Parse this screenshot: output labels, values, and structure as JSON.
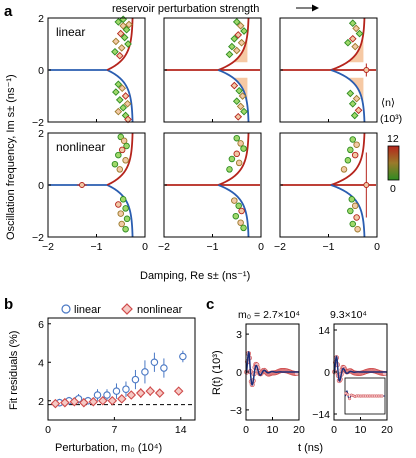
{
  "figure": {
    "panels": [
      "a",
      "b",
      "c"
    ],
    "header": "reservoir perturbation strength",
    "colorbar": {
      "label": "⟨n⟩",
      "unit": "(10³)",
      "max_label": "12",
      "min_label": "0",
      "colors": [
        "#2e8b22",
        "#9a7a2a",
        "#b5241c"
      ]
    },
    "palette": {
      "upper_curve": "#b5241c",
      "lower_curve": "#2a5db0",
      "shade": "#f6c9a4",
      "linear_marker": "#4a78c4",
      "nonlinear_marker": "#cf4b4b",
      "fit_line": "#1c2f7a"
    }
  },
  "chart_data": [
    {
      "panel": "a",
      "type": "scatter",
      "description_rows": [
        "linear",
        "nonlinear"
      ],
      "row_labels": [
        "linear",
        "nonlinear"
      ],
      "columns": 3,
      "xlabel": "Damping, Re s± (ns⁻¹)",
      "ylabel": "Oscillation frequency, Im s± (ns⁻¹)",
      "xlim": [
        -2,
        0
      ],
      "ylim": [
        -2,
        2
      ],
      "xticks": [
        "−2",
        "−1",
        "0"
      ],
      "yticks": [
        "2",
        "0",
        "−2"
      ],
      "subpanels": [
        {
          "row": "linear",
          "col": 1,
          "branch_x": -0.78,
          "center_dot": null,
          "points": [
            [
              -0.55,
              1.85
            ],
            [
              -0.45,
              1.7
            ],
            [
              -0.38,
              1.55
            ],
            [
              -0.5,
              1.4
            ],
            [
              -0.42,
              1.25
            ],
            [
              -0.6,
              1.1
            ],
            [
              -0.35,
              1.0
            ],
            [
              -0.48,
              0.85
            ],
            [
              -0.62,
              0.7
            ],
            [
              -0.52,
              0.55
            ],
            [
              -0.45,
              1.95
            ],
            [
              -0.33,
              1.75
            ],
            [
              -0.55,
              -0.55
            ],
            [
              -0.47,
              -0.7
            ],
            [
              -0.6,
              -0.85
            ],
            [
              -0.4,
              -1.0
            ],
            [
              -0.52,
              -1.15
            ],
            [
              -0.36,
              -1.3
            ],
            [
              -0.45,
              -1.45
            ],
            [
              -0.55,
              -1.6
            ],
            [
              -0.4,
              -1.75
            ],
            [
              -0.35,
              -1.9
            ]
          ]
        },
        {
          "row": "linear",
          "col": 2,
          "branch_x": -0.88,
          "center_dot": null,
          "points": [
            [
              -0.5,
              1.85
            ],
            [
              -0.42,
              1.7
            ],
            [
              -0.35,
              1.5
            ],
            [
              -0.47,
              1.35
            ],
            [
              -0.55,
              1.2
            ],
            [
              -0.4,
              1.05
            ],
            [
              -0.6,
              0.9
            ],
            [
              -0.5,
              0.75
            ],
            [
              -0.65,
              0.6
            ],
            [
              -0.55,
              -0.6
            ],
            [
              -0.45,
              -0.8
            ],
            [
              -0.38,
              -1.0
            ],
            [
              -0.5,
              -1.2
            ],
            [
              -0.42,
              -1.4
            ],
            [
              -0.35,
              -1.6
            ],
            [
              -0.47,
              -1.8
            ]
          ]
        },
        {
          "row": "linear",
          "col": 3,
          "branch_x": -0.95,
          "center_dot": [
            -0.22,
            0.0,
            0.25
          ],
          "points": [
            [
              -0.5,
              1.8
            ],
            [
              -0.43,
              1.6
            ],
            [
              -0.36,
              1.4
            ],
            [
              -0.5,
              1.2
            ],
            [
              -0.6,
              1.05
            ],
            [
              -0.45,
              0.9
            ],
            [
              -0.55,
              -0.9
            ],
            [
              -0.42,
              -1.1
            ],
            [
              -0.5,
              -1.3
            ],
            [
              -0.38,
              -1.55
            ],
            [
              -0.46,
              -1.75
            ]
          ]
        },
        {
          "row": "nonlinear",
          "col": 1,
          "branch_x": -0.78,
          "center_dot": [
            -1.3,
            0.0,
            0.1
          ],
          "points": [
            [
              -0.5,
              1.85
            ],
            [
              -0.43,
              1.7
            ],
            [
              -0.38,
              1.5
            ],
            [
              -0.47,
              1.35
            ],
            [
              -0.55,
              1.15
            ],
            [
              -0.4,
              0.95
            ],
            [
              -0.62,
              0.8
            ],
            [
              -0.52,
              0.6
            ],
            [
              -0.45,
              -0.55
            ],
            [
              -0.55,
              -0.75
            ],
            [
              -0.4,
              -0.9
            ],
            [
              -0.5,
              -1.1
            ],
            [
              -0.37,
              -1.3
            ],
            [
              -0.48,
              -1.5
            ],
            [
              -0.4,
              -1.7
            ]
          ]
        },
        {
          "row": "nonlinear",
          "col": 2,
          "branch_x": -0.88,
          "center_dot": null,
          "points": [
            [
              -0.5,
              1.8
            ],
            [
              -0.42,
              1.6
            ],
            [
              -0.36,
              1.4
            ],
            [
              -0.5,
              1.2
            ],
            [
              -0.6,
              1.0
            ],
            [
              -0.45,
              0.85
            ],
            [
              -0.65,
              0.6
            ],
            [
              -0.55,
              -0.6
            ],
            [
              -0.46,
              -0.8
            ],
            [
              -0.4,
              -1.0
            ],
            [
              -0.52,
              -1.2
            ],
            [
              -0.42,
              -1.45
            ],
            [
              -0.36,
              -1.65
            ]
          ]
        },
        {
          "row": "nonlinear",
          "col": 3,
          "branch_x": -0.95,
          "center_dot": [
            -0.22,
            0.0,
            1.25
          ],
          "points": [
            [
              -0.5,
              1.75
            ],
            [
              -0.42,
              1.55
            ],
            [
              -0.55,
              1.35
            ],
            [
              -0.45,
              1.15
            ],
            [
              -0.6,
              0.95
            ],
            [
              -0.68,
              0.6
            ],
            [
              -0.52,
              -0.55
            ],
            [
              -0.45,
              -0.8
            ],
            [
              -0.55,
              -1.0
            ],
            [
              -0.42,
              -1.25
            ],
            [
              -0.5,
              -1.5
            ],
            [
              -0.4,
              -1.7
            ]
          ]
        }
      ]
    },
    {
      "panel": "b",
      "type": "scatter",
      "xlabel": "Perturbation, m₀ (10⁴)",
      "ylabel": "Fit residuals (%)",
      "xlim": [
        0,
        15.5
      ],
      "ylim": [
        1,
        6.3
      ],
      "xticks": [
        0,
        7,
        14
      ],
      "yticks": [
        2,
        4,
        6
      ],
      "legend": [
        "linear",
        "nonlinear"
      ],
      "baseline": 1.8,
      "series": [
        {
          "name": "linear",
          "marker": "circle",
          "x": [
            1,
            2,
            3,
            4,
            5,
            6,
            7,
            8,
            9,
            10,
            11,
            12,
            14
          ],
          "y": [
            1.9,
            2.0,
            2.1,
            2.0,
            2.3,
            2.3,
            2.5,
            2.6,
            3.1,
            3.5,
            4.0,
            3.7,
            4.3
          ],
          "err": [
            0.2,
            0.2,
            0.25,
            0.2,
            0.3,
            0.3,
            0.4,
            0.4,
            0.5,
            0.6,
            0.5,
            0.5,
            0.3
          ]
        },
        {
          "name": "nonlinear",
          "marker": "diamond",
          "x": [
            1,
            2,
            3,
            4,
            5,
            6,
            7,
            8,
            9,
            10,
            11,
            12,
            14
          ],
          "y": [
            1.85,
            1.9,
            1.95,
            1.9,
            1.95,
            2.0,
            2.0,
            2.1,
            2.3,
            2.4,
            2.5,
            2.4,
            2.5
          ],
          "err": [
            0.15,
            0.15,
            0.15,
            0.15,
            0.15,
            0.15,
            0.2,
            0.2,
            0.2,
            0.25,
            0.25,
            0.2,
            0.2
          ]
        }
      ]
    },
    {
      "panel": "c",
      "type": "line",
      "xlabel": "t (ns)",
      "ylabel": "R(t) (10³)",
      "subpanels": [
        {
          "title_prefix": "m₀ = 2.7×10⁴",
          "title": "m₀ = 2.7×10⁴",
          "xlim": [
            0,
            20
          ],
          "xticks": [
            0,
            10,
            20
          ],
          "ylim": [
            -3.8,
            3.8
          ],
          "yticks": [
            3,
            0,
            -3
          ],
          "amplitude": 3.0,
          "decay_ns": 2.2,
          "freq_per_ns": 0.33,
          "phase": -1.9
        },
        {
          "title": "9.3×10⁴",
          "xlim": [
            0,
            20
          ],
          "xticks": [
            0,
            10,
            20
          ],
          "ylim": [
            -16,
            16
          ],
          "yticks": [
            14,
            0,
            -14
          ],
          "amplitude": 12.5,
          "decay_ns": 1.5,
          "freq_per_ns": 0.36,
          "phase": -1.9
        }
      ]
    }
  ]
}
